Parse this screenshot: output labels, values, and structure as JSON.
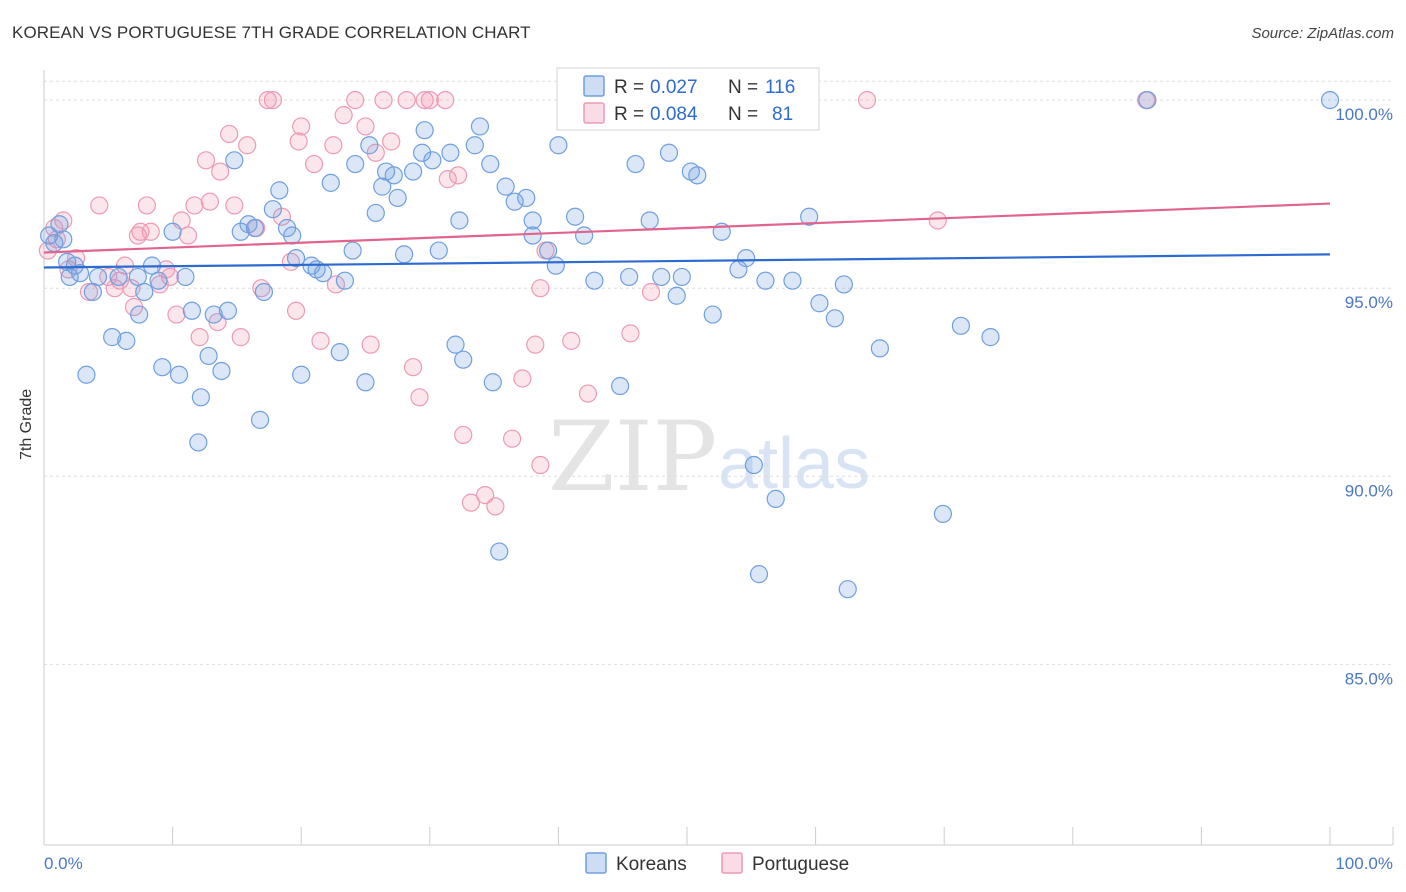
{
  "header": {
    "title": "KOREAN VS PORTUGUESE 7TH GRADE CORRELATION CHART",
    "source": "Source: ZipAtlas.com"
  },
  "watermark": {
    "zip": "ZIP",
    "atlas": "atlas"
  },
  "colors": {
    "korean": "#6f9fe0",
    "korean_fill": "rgba(111,159,224,0.25)",
    "korean_line": "#2e6bd0",
    "portuguese": "#ee9ab5",
    "portuguese_fill": "rgba(238,154,181,0.25)",
    "portuguese_line": "#e0648e",
    "grid": "#dddddd",
    "axis_label": "#4a78c2"
  },
  "legend": {
    "rows": [
      {
        "r_label": "R =",
        "r_value": "0.027",
        "n_label": "N =",
        "n_value": "116"
      },
      {
        "r_label": "R =",
        "r_value": "0.084",
        "n_label": "N =",
        "n_value": "81"
      }
    ]
  },
  "chart_data": {
    "type": "scatter",
    "title": "KOREAN VS PORTUGUESE 7TH GRADE CORRELATION CHART",
    "xlabel": "",
    "ylabel": "7th Grade",
    "xlim": [
      0,
      100
    ],
    "ylim": [
      80.2,
      100.8
    ],
    "x_tick_labels": [
      "0.0%",
      "100.0%"
    ],
    "y_ticks": [
      85,
      90,
      95,
      100
    ],
    "y_tick_labels": [
      "85.0%",
      "90.0%",
      "95.0%",
      "100.0%"
    ],
    "grid": true,
    "legend_position": "top-center",
    "series": [
      {
        "name": "Koreans",
        "r": 0.027,
        "n": 116,
        "trend": {
          "x": [
            0,
            100
          ],
          "y": [
            95.55,
            95.9
          ]
        },
        "points": [
          [
            0.4,
            96.4
          ],
          [
            0.8,
            96.2
          ],
          [
            1.2,
            96.7
          ],
          [
            1.5,
            96.3
          ],
          [
            2.0,
            95.3
          ],
          [
            2.4,
            95.6
          ],
          [
            2.8,
            95.4
          ],
          [
            3.3,
            92.7
          ],
          [
            3.8,
            94.9
          ],
          [
            4.2,
            95.3
          ],
          [
            5.3,
            93.7
          ],
          [
            5.8,
            95.3
          ],
          [
            6.4,
            93.6
          ],
          [
            7.3,
            95.3
          ],
          [
            7.4,
            94.3
          ],
          [
            7.8,
            94.9
          ],
          [
            8.4,
            95.6
          ],
          [
            8.9,
            95.2
          ],
          [
            9.2,
            92.9
          ],
          [
            10.0,
            96.5
          ],
          [
            10.5,
            92.7
          ],
          [
            11.0,
            95.3
          ],
          [
            11.5,
            94.4
          ],
          [
            12.2,
            92.1
          ],
          [
            12.0,
            90.9
          ],
          [
            12.8,
            93.2
          ],
          [
            13.2,
            94.3
          ],
          [
            13.8,
            92.8
          ],
          [
            14.3,
            94.4
          ],
          [
            14.8,
            98.4
          ],
          [
            15.3,
            96.5
          ],
          [
            15.9,
            96.7
          ],
          [
            16.4,
            96.6
          ],
          [
            16.8,
            91.5
          ],
          [
            17.1,
            94.9
          ],
          [
            17.8,
            97.1
          ],
          [
            18.3,
            97.6
          ],
          [
            18.9,
            96.6
          ],
          [
            19.3,
            96.4
          ],
          [
            19.6,
            95.8
          ],
          [
            20.0,
            92.7
          ],
          [
            20.8,
            95.6
          ],
          [
            21.2,
            95.5
          ],
          [
            21.7,
            95.4
          ],
          [
            22.3,
            97.8
          ],
          [
            23.0,
            93.3
          ],
          [
            23.4,
            95.2
          ],
          [
            24.0,
            96.0
          ],
          [
            24.2,
            98.3
          ],
          [
            25.0,
            92.5
          ],
          [
            25.3,
            98.8
          ],
          [
            25.8,
            97.0
          ],
          [
            26.3,
            97.7
          ],
          [
            26.6,
            98.1
          ],
          [
            27.2,
            98.0
          ],
          [
            27.5,
            97.4
          ],
          [
            28.0,
            95.9
          ],
          [
            28.7,
            98.1
          ],
          [
            29.4,
            98.6
          ],
          [
            29.6,
            99.2
          ],
          [
            30.2,
            98.4
          ],
          [
            30.7,
            96.0
          ],
          [
            31.6,
            98.6
          ],
          [
            32.0,
            93.5
          ],
          [
            32.3,
            96.8
          ],
          [
            32.6,
            93.1
          ],
          [
            33.5,
            98.8
          ],
          [
            33.9,
            99.3
          ],
          [
            34.7,
            98.3
          ],
          [
            34.9,
            92.5
          ],
          [
            35.4,
            88.0
          ],
          [
            35.9,
            97.7
          ],
          [
            36.6,
            97.3
          ],
          [
            37.5,
            97.4
          ],
          [
            38.0,
            96.4
          ],
          [
            38.0,
            96.8
          ],
          [
            39.2,
            96.0
          ],
          [
            39.8,
            95.6
          ],
          [
            40.0,
            98.8
          ],
          [
            40.6,
            100.0
          ],
          [
            41.3,
            96.9
          ],
          [
            42.0,
            96.4
          ],
          [
            42.8,
            95.2
          ],
          [
            44.8,
            92.4
          ],
          [
            45.5,
            95.3
          ],
          [
            46.0,
            98.3
          ],
          [
            47.1,
            96.8
          ],
          [
            48.0,
            95.3
          ],
          [
            48.6,
            98.6
          ],
          [
            49.2,
            94.8
          ],
          [
            49.6,
            95.3
          ],
          [
            50.3,
            98.1
          ],
          [
            50.8,
            98.0
          ],
          [
            52.0,
            94.3
          ],
          [
            52.7,
            96.5
          ],
          [
            54.0,
            95.5
          ],
          [
            54.6,
            95.8
          ],
          [
            55.2,
            90.3
          ],
          [
            55.6,
            87.4
          ],
          [
            56.1,
            95.2
          ],
          [
            56.9,
            89.4
          ],
          [
            58.2,
            95.2
          ],
          [
            59.5,
            96.9
          ],
          [
            60.3,
            94.6
          ],
          [
            61.5,
            94.2
          ],
          [
            62.2,
            95.1
          ],
          [
            62.5,
            87.0
          ],
          [
            65.0,
            93.4
          ],
          [
            69.9,
            89.0
          ],
          [
            71.3,
            94.0
          ],
          [
            73.6,
            93.7
          ],
          [
            85.8,
            100.0
          ],
          [
            100.0,
            100.0
          ],
          [
            40.7,
            100.0
          ],
          [
            54.0,
            100.0
          ],
          [
            1.8,
            95.7
          ]
        ]
      },
      {
        "name": "Portuguese",
        "r": 0.084,
        "n": 81,
        "trend": {
          "x": [
            0,
            100
          ],
          "y": [
            95.95,
            97.25
          ]
        },
        "points": [
          [
            0.3,
            96.0
          ],
          [
            0.8,
            96.6
          ],
          [
            1.0,
            96.3
          ],
          [
            1.5,
            96.8
          ],
          [
            1.9,
            95.5
          ],
          [
            2.5,
            95.8
          ],
          [
            3.5,
            94.9
          ],
          [
            4.3,
            97.2
          ],
          [
            5.0,
            95.3
          ],
          [
            5.5,
            95.0
          ],
          [
            5.9,
            95.2
          ],
          [
            6.3,
            95.6
          ],
          [
            6.8,
            95.0
          ],
          [
            7.0,
            94.5
          ],
          [
            7.3,
            96.4
          ],
          [
            7.5,
            96.5
          ],
          [
            8.0,
            97.2
          ],
          [
            8.3,
            96.5
          ],
          [
            9.0,
            95.1
          ],
          [
            9.5,
            95.5
          ],
          [
            9.8,
            95.3
          ],
          [
            10.3,
            94.3
          ],
          [
            10.7,
            96.8
          ],
          [
            11.2,
            96.4
          ],
          [
            11.7,
            97.2
          ],
          [
            12.1,
            93.7
          ],
          [
            12.6,
            98.4
          ],
          [
            12.9,
            97.3
          ],
          [
            13.5,
            94.1
          ],
          [
            13.7,
            98.1
          ],
          [
            14.4,
            99.1
          ],
          [
            14.8,
            97.2
          ],
          [
            15.3,
            93.7
          ],
          [
            15.8,
            98.8
          ],
          [
            16.5,
            96.6
          ],
          [
            16.9,
            95.0
          ],
          [
            17.4,
            100.0
          ],
          [
            17.8,
            100.0
          ],
          [
            18.5,
            96.9
          ],
          [
            19.2,
            95.7
          ],
          [
            19.6,
            94.4
          ],
          [
            19.8,
            98.9
          ],
          [
            20.0,
            99.3
          ],
          [
            21.0,
            98.3
          ],
          [
            21.5,
            93.6
          ],
          [
            22.5,
            98.8
          ],
          [
            22.7,
            95.1
          ],
          [
            23.3,
            99.6
          ],
          [
            24.2,
            100.0
          ],
          [
            25.0,
            99.3
          ],
          [
            25.4,
            93.5
          ],
          [
            25.8,
            98.6
          ],
          [
            26.4,
            100.0
          ],
          [
            27.0,
            98.9
          ],
          [
            28.2,
            100.0
          ],
          [
            28.7,
            92.9
          ],
          [
            29.2,
            92.1
          ],
          [
            29.6,
            100.0
          ],
          [
            30.0,
            100.0
          ],
          [
            31.2,
            100.0
          ],
          [
            31.4,
            97.9
          ],
          [
            32.2,
            98.0
          ],
          [
            32.6,
            91.1
          ],
          [
            33.2,
            89.3
          ],
          [
            34.3,
            89.5
          ],
          [
            35.1,
            89.2
          ],
          [
            36.4,
            91.0
          ],
          [
            37.2,
            92.6
          ],
          [
            38.2,
            93.5
          ],
          [
            38.6,
            95.0
          ],
          [
            39.0,
            96.0
          ],
          [
            38.6,
            90.3
          ],
          [
            41.0,
            93.6
          ],
          [
            42.3,
            92.2
          ],
          [
            44.0,
            100.0
          ],
          [
            45.6,
            93.8
          ],
          [
            47.2,
            94.9
          ],
          [
            49.3,
            100.0
          ],
          [
            64.0,
            100.0
          ],
          [
            69.5,
            96.8
          ],
          [
            85.7,
            100.0
          ]
        ]
      }
    ]
  },
  "bottom_legend": {
    "items": [
      {
        "label": "Koreans"
      },
      {
        "label": "Portuguese"
      }
    ]
  }
}
